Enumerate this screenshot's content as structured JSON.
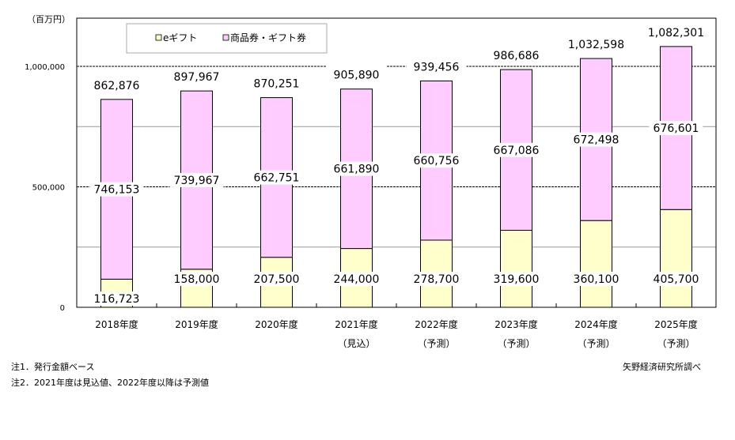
{
  "chart_data": {
    "type": "bar",
    "stacked": true,
    "unit_label": "（百万円）",
    "categories": [
      "2018年度",
      "2019年度",
      "2020年度",
      "2021年度",
      "2022年度",
      "2023年度",
      "2024年度",
      "2025年度"
    ],
    "category_sublabels": [
      "",
      "",
      "",
      "（見込）",
      "（予測）",
      "（予測）",
      "（予測）",
      "（予測）"
    ],
    "series": [
      {
        "name": "eギフト",
        "color": "#ffffcc",
        "values": [
          116723,
          158000,
          207500,
          244000,
          278700,
          319600,
          360100,
          405700
        ]
      },
      {
        "name": "商品券・ギフト券",
        "color": "#ffccff",
        "values": [
          746153,
          739967,
          662751,
          661890,
          660756,
          667086,
          672498,
          676601
        ]
      }
    ],
    "totals": [
      862876,
      897967,
      870251,
      905890,
      939456,
      986686,
      1032598,
      1082301
    ],
    "ylim": [
      0,
      1200000
    ],
    "yticks": [
      0,
      500000,
      1000000
    ],
    "ytick_labels": [
      "0",
      "500,000",
      "1,000,000"
    ],
    "legend_placement": "top-left inside",
    "grid": true
  },
  "notes": [
    "注1．発行金額ベース",
    "注2．2021年度は見込値、2022年度以降は予測値"
  ],
  "source": "矢野経済研究所調べ"
}
